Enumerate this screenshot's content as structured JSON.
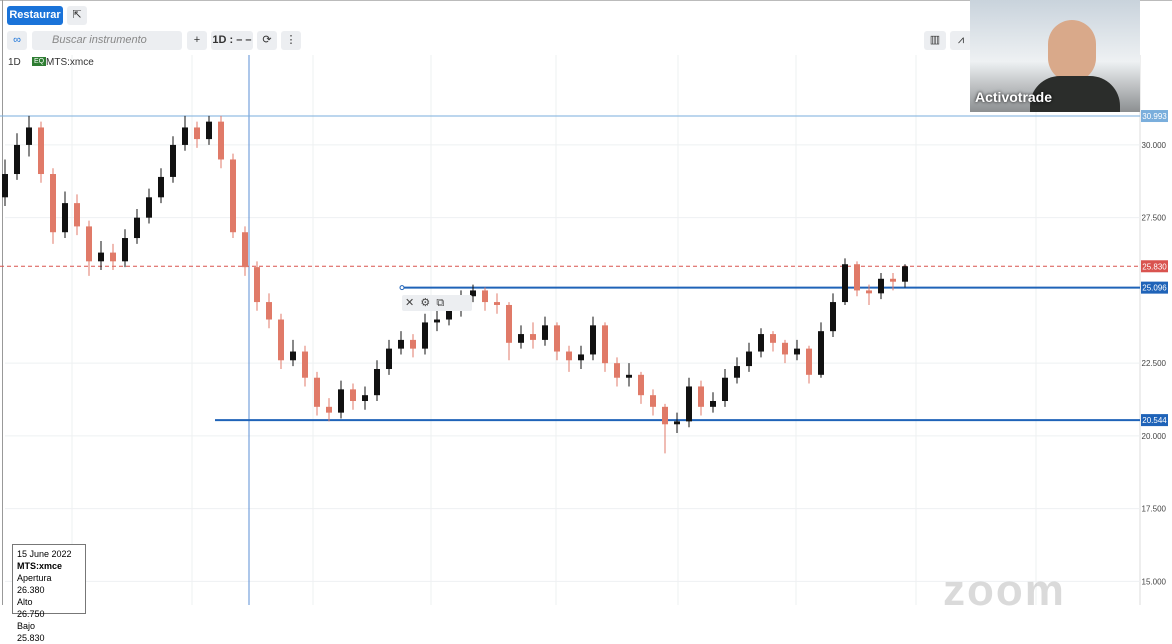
{
  "toolbar": {
    "restore": "Restaurar",
    "search_placeholder": "Buscar instrumento",
    "interval": "1D : – –"
  },
  "legend": {
    "interval": "1D",
    "badge": "EQ",
    "symbol": "MTS:xmce"
  },
  "info_box": {
    "date": "15 June 2022",
    "symbol": "MTS:xmce",
    "rows": [
      [
        "Apertura",
        "26.380"
      ],
      [
        "Alto",
        "26.750"
      ],
      [
        "Bajo",
        "25.830"
      ]
    ]
  },
  "webcam": {
    "name": "Activotrade"
  },
  "watermark": "zoom",
  "chart_data": {
    "type": "candlestick",
    "up_color": "#111111",
    "down_color": "#e07a68",
    "open": [
      28.2,
      29.0,
      30.0,
      30.6,
      29.0,
      27.0,
      28.0,
      27.2,
      26.0,
      26.3,
      26.0,
      26.8,
      27.5,
      28.2,
      28.9,
      30.0,
      30.6,
      30.2,
      30.8,
      29.5,
      27.0,
      25.8,
      24.6,
      24.0,
      22.6,
      22.9,
      22.0,
      21.0,
      20.8,
      21.6,
      21.2,
      21.4,
      22.3,
      23.0,
      23.3,
      23.0,
      23.9,
      24.0,
      24.3,
      24.8,
      25.0,
      24.6,
      24.5,
      23.2,
      23.5,
      23.3,
      23.8,
      22.9,
      22.6,
      22.8,
      23.8,
      22.5,
      22.0,
      22.1,
      21.4,
      21.0,
      20.4,
      20.5,
      21.7,
      21.0,
      21.2,
      22.0,
      22.4,
      22.9,
      23.5,
      23.2,
      22.8,
      23.0,
      22.1,
      23.6,
      24.6,
      25.9,
      25.0,
      24.9,
      25.4,
      25.3
    ],
    "high": [
      29.5,
      30.4,
      31.0,
      30.8,
      29.2,
      28.4,
      28.3,
      27.4,
      26.7,
      26.6,
      27.1,
      27.8,
      28.5,
      29.2,
      30.3,
      31.0,
      30.8,
      31.0,
      31.0,
      29.7,
      27.2,
      26.0,
      24.9,
      24.2,
      23.3,
      23.1,
      22.2,
      21.3,
      21.9,
      21.8,
      21.7,
      22.6,
      23.3,
      23.6,
      23.5,
      24.2,
      24.3,
      24.6,
      25.0,
      25.2,
      25.1,
      24.9,
      24.6,
      23.8,
      23.9,
      24.1,
      23.9,
      23.1,
      23.1,
      24.1,
      23.9,
      22.7,
      22.5,
      22.2,
      21.6,
      21.1,
      20.8,
      22.0,
      21.9,
      21.5,
      22.3,
      22.7,
      23.2,
      23.7,
      23.6,
      23.3,
      23.3,
      23.1,
      23.9,
      24.9,
      26.1,
      26.0,
      25.2,
      25.6,
      25.6,
      25.9
    ],
    "low": [
      27.9,
      28.8,
      29.6,
      28.7,
      26.6,
      26.8,
      26.9,
      25.5,
      25.7,
      25.7,
      25.8,
      26.6,
      27.3,
      28.0,
      28.7,
      29.8,
      29.9,
      30.0,
      29.2,
      26.8,
      25.5,
      24.3,
      23.7,
      22.3,
      22.4,
      21.7,
      20.7,
      20.5,
      20.6,
      20.9,
      20.9,
      21.2,
      22.1,
      22.8,
      22.7,
      22.8,
      23.6,
      23.8,
      24.1,
      24.6,
      24.3,
      24.2,
      22.6,
      23.0,
      23.0,
      23.1,
      22.6,
      22.2,
      22.3,
      22.6,
      22.2,
      21.7,
      21.7,
      21.1,
      20.7,
      19.4,
      20.1,
      20.3,
      20.7,
      20.8,
      21.0,
      21.8,
      22.2,
      22.7,
      22.9,
      22.5,
      22.6,
      21.8,
      22.0,
      23.4,
      24.5,
      24.8,
      24.5,
      24.7,
      25.0,
      25.1
    ],
    "close": [
      29.0,
      30.0,
      30.6,
      29.0,
      27.0,
      28.0,
      27.2,
      26.0,
      26.3,
      26.0,
      26.8,
      27.5,
      28.2,
      28.9,
      30.0,
      30.6,
      30.2,
      30.8,
      29.5,
      27.0,
      25.8,
      24.6,
      24.0,
      22.6,
      22.9,
      22.0,
      21.0,
      20.8,
      21.6,
      21.2,
      21.4,
      22.3,
      23.0,
      23.3,
      23.0,
      23.9,
      24.0,
      24.3,
      24.8,
      25.0,
      24.6,
      24.5,
      23.2,
      23.5,
      23.3,
      23.8,
      22.9,
      22.6,
      22.8,
      23.8,
      22.5,
      22.0,
      22.1,
      21.4,
      21.0,
      20.4,
      20.5,
      21.7,
      21.0,
      21.2,
      22.0,
      22.4,
      22.9,
      23.5,
      23.2,
      22.8,
      23.0,
      22.1,
      23.6,
      24.6,
      25.9,
      25.0,
      24.9,
      25.4,
      25.3,
      25.83
    ],
    "ylim": [
      14.19,
      33.09
    ],
    "yticks": [
      {
        "value": 15,
        "label": "15.000"
      },
      {
        "value": 17.5,
        "label": "17.500"
      },
      {
        "value": 20,
        "label": "20.000"
      },
      {
        "value": 22.5,
        "label": "22.500"
      },
      {
        "value": 27.5,
        "label": "27.500"
      },
      {
        "value": 30,
        "label": "30.000"
      }
    ],
    "grid": true,
    "levels": [
      {
        "value": 30.993,
        "label": "30.993",
        "color": "#7aaedc"
      },
      {
        "value": 25.83,
        "label": "25.830",
        "color": "#d9534f"
      },
      {
        "value": 25.096,
        "label": "25.096",
        "color": "#1f63b8"
      },
      {
        "value": 20.544,
        "label": "20.544",
        "color": "#1f63b8"
      }
    ]
  }
}
